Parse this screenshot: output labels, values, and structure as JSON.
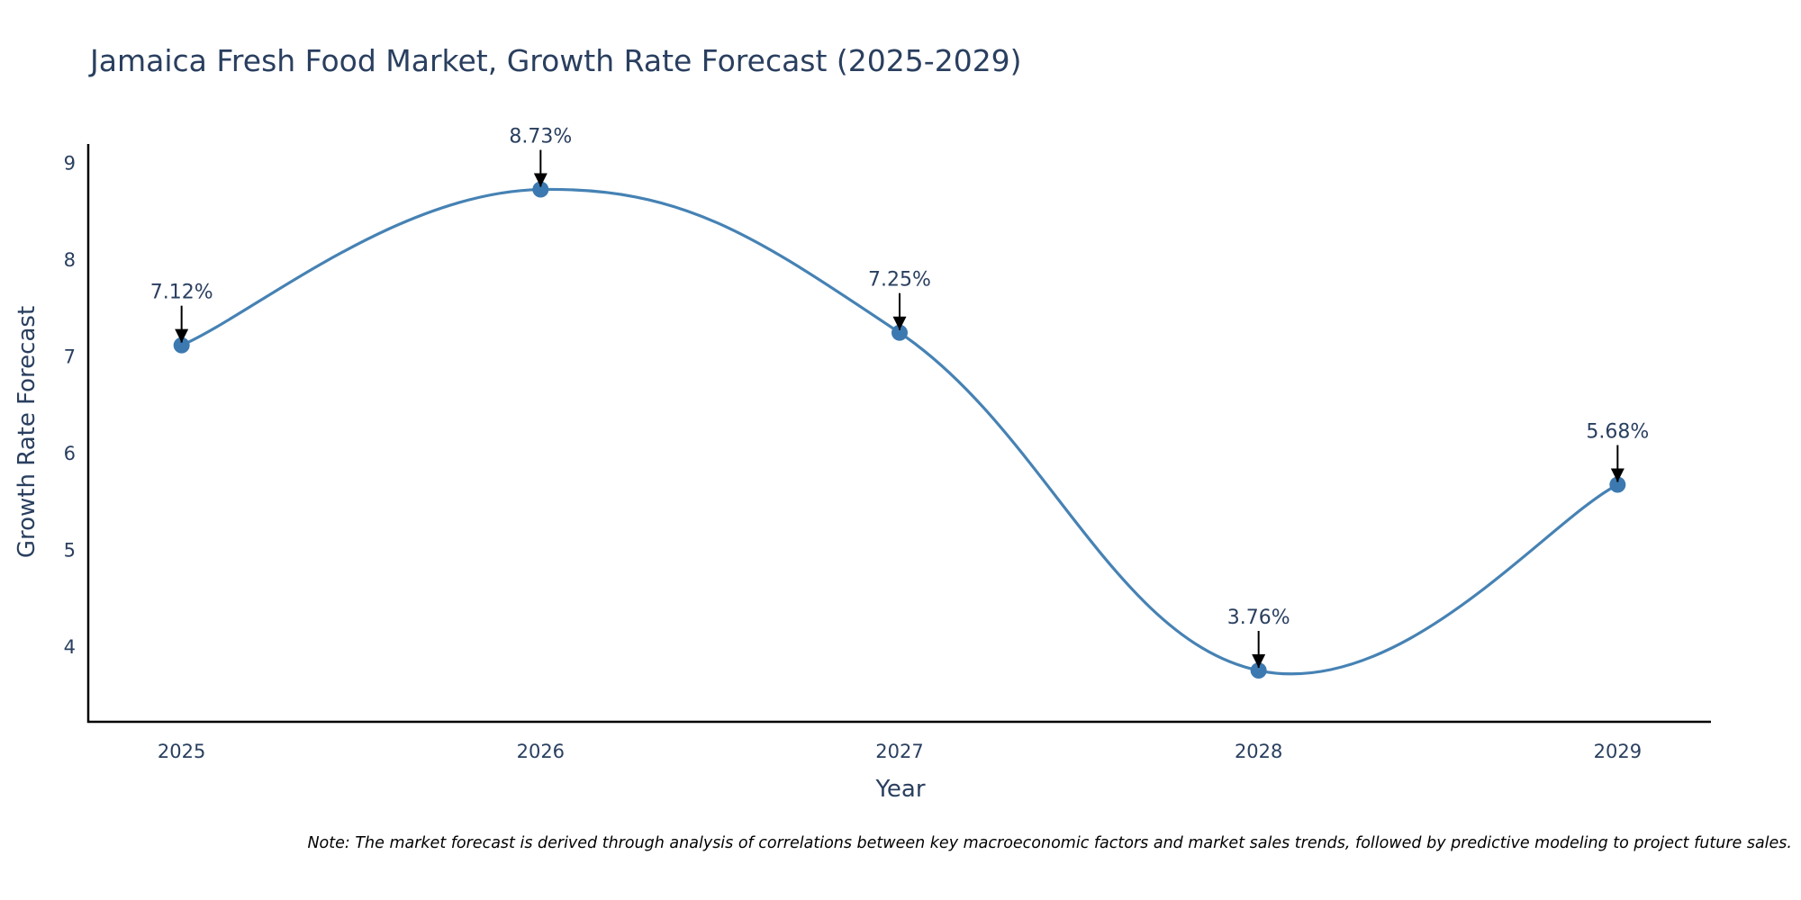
{
  "chart_data": {
    "type": "line",
    "title": "Jamaica Fresh Food Market, Growth Rate Forecast (2025-2029)",
    "xlabel": "Year",
    "ylabel": "Growth Rate Forecast",
    "categories": [
      "2025",
      "2026",
      "2027",
      "2028",
      "2029"
    ],
    "x": [
      2025,
      2026,
      2027,
      2028,
      2029
    ],
    "series": [
      {
        "name": "Growth Rate Forecast",
        "values": [
          7.12,
          8.73,
          7.25,
          3.76,
          5.68
        ],
        "labels": [
          "7.12%",
          "8.73%",
          "7.25%",
          "3.76%",
          "5.68%"
        ]
      }
    ],
    "xlim": [
      2024.74,
      2029.26
    ],
    "ylim": [
      3.23,
      9.2
    ],
    "yticks": [
      4,
      5,
      6,
      7,
      8,
      9
    ],
    "ytick_labels": [
      "4",
      "5",
      "6",
      "7",
      "8",
      "9"
    ],
    "line_shape": "spline",
    "grid": false,
    "legend": "none",
    "colors": {
      "line": "#4682b4",
      "marker": "#3c79b0",
      "annotation_arrow": "#000000",
      "text": "#2a3f5f"
    }
  },
  "note": "Note: The market forecast is derived through analysis of correlations between key macroeconomic factors and market sales trends, followed by predictive modeling to project future sales."
}
